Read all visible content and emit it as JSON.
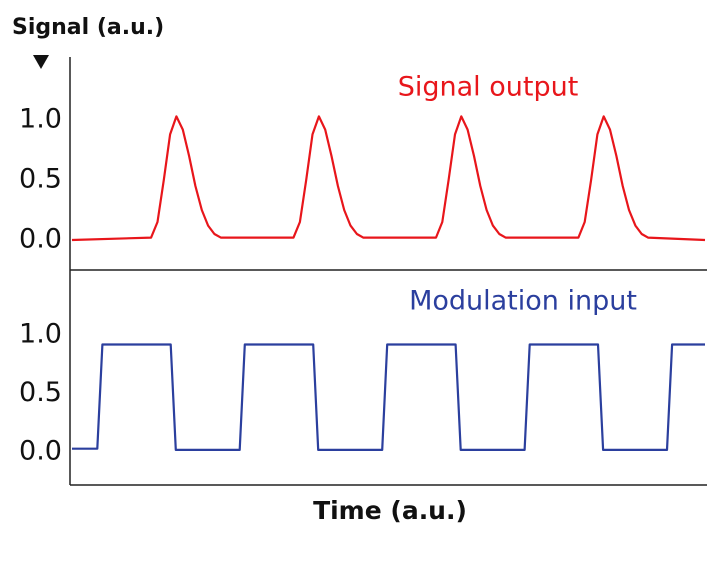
{
  "chart_data": [
    {
      "type": "line",
      "ylabel": "Signal (a.u.)",
      "xlim": [
        0,
        100
      ],
      "ylim": [
        -0.25,
        1.525
      ],
      "yticks": [
        {
          "value": 0,
          "label": "0.0"
        },
        {
          "value": 0.5,
          "label": "0.5"
        },
        {
          "value": 1,
          "label": "1.0"
        }
      ],
      "series": [
        {
          "name": "Signal output",
          "color": "#e8161b",
          "x": [
            0,
            12.5,
            13.5,
            14.5,
            15.5,
            16.5,
            17.5,
            18.5,
            19.5,
            20.5,
            21.5,
            22.5,
            23.5,
            35,
            36,
            37,
            38,
            39,
            40,
            41,
            42,
            43,
            44,
            45,
            46,
            57.5,
            58.5,
            59.5,
            60.5,
            61.5,
            62.5,
            63.5,
            64.5,
            65.5,
            66.5,
            67.5,
            68.5,
            80,
            81,
            82,
            83,
            84,
            85,
            86,
            87,
            88,
            89,
            90,
            91,
            100
          ],
          "values": [
            0.0,
            0.02,
            0.15,
            0.5,
            0.88,
            1.03,
            0.92,
            0.7,
            0.45,
            0.25,
            0.12,
            0.05,
            0.02,
            0.02,
            0.15,
            0.5,
            0.88,
            1.03,
            0.92,
            0.7,
            0.45,
            0.25,
            0.12,
            0.05,
            0.02,
            0.02,
            0.15,
            0.5,
            0.88,
            1.03,
            0.92,
            0.7,
            0.45,
            0.25,
            0.12,
            0.05,
            0.02,
            0.02,
            0.15,
            0.5,
            0.88,
            1.03,
            0.92,
            0.7,
            0.45,
            0.25,
            0.12,
            0.05,
            0.02,
            0.0
          ]
        }
      ]
    },
    {
      "type": "line",
      "xlabel": "Time (a.u.)",
      "xlim": [
        0,
        100
      ],
      "ylim": [
        -0.28,
        1.556
      ],
      "yticks": [
        {
          "value": 0,
          "label": "0.0"
        },
        {
          "value": 0.5,
          "label": "0.5"
        },
        {
          "value": 1,
          "label": "1.0"
        }
      ],
      "series": [
        {
          "name": "Modulation input",
          "color": "#2b3f9e",
          "x": [
            0,
            4.0,
            4.8,
            15.6,
            16.4,
            26.5,
            27.3,
            38.1,
            38.9,
            49.0,
            49.8,
            60.6,
            61.4,
            71.5,
            72.3,
            83.1,
            83.9,
            94.0,
            94.8,
            100
          ],
          "values": [
            0.03,
            0.03,
            0.92,
            0.92,
            0.02,
            0.02,
            0.92,
            0.92,
            0.02,
            0.02,
            0.92,
            0.92,
            0.02,
            0.02,
            0.92,
            0.92,
            0.02,
            0.02,
            0.92,
            0.92
          ]
        }
      ]
    }
  ]
}
